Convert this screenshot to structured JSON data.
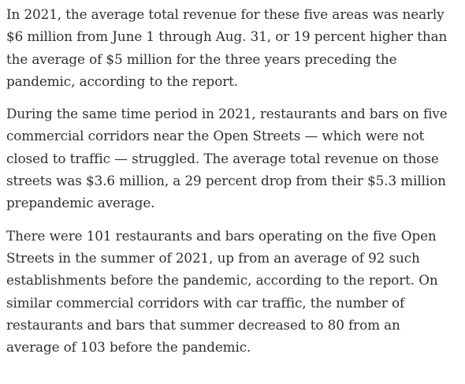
{
  "article": {
    "paragraphs": [
      {
        "lines": [
          "In 2021, the average total revenue for these five areas was nearly",
          "$6 million from June 1 through Aug. 31, or 19 percent higher than",
          "the average of $5 million for the three years preceding the",
          "pandemic, according to the report."
        ]
      },
      {
        "lines": [
          "During the same time period in 2021, restaurants and bars on five",
          "commercial corridors near the Open Streets — which were not",
          "closed to traffic — struggled. The average total revenue on those",
          "streets was $3.6 million, a 29 percent drop from their $5.3 million",
          "prepandemic average."
        ]
      },
      {
        "lines": [
          "There were 101 restaurants and bars operating on the five Open",
          "Streets in the summer of 2021, up from an average of 92 such",
          "establishments before the pandemic, according to the report. On",
          "similar commercial corridors with car traffic, the number of",
          "restaurants and bars that summer decreased to 80 from an",
          "average of 103 before the pandemic."
        ]
      }
    ]
  }
}
